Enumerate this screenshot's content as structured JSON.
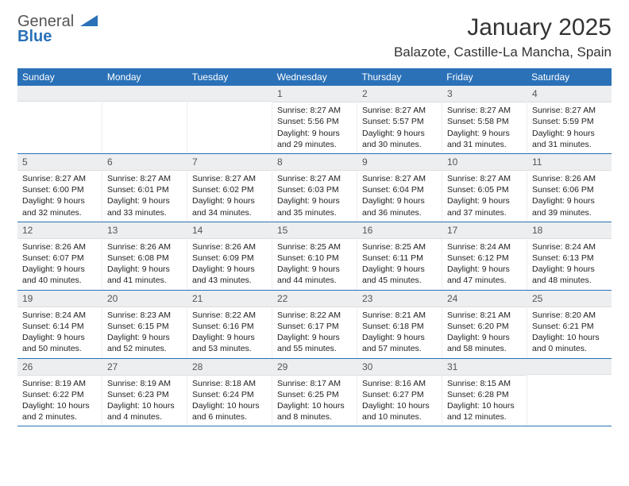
{
  "logo": {
    "line1": "General",
    "line2": "Blue",
    "tri_color": "#2a71b8"
  },
  "title": "January 2025",
  "location": "Balazote, Castille-La Mancha, Spain",
  "colors": {
    "header_bg": "#2a71b8",
    "header_text": "#ffffff",
    "daynum_bg": "#eceef0",
    "body_text": "#222222",
    "border": "#2a71b8"
  },
  "day_headers": [
    "Sunday",
    "Monday",
    "Tuesday",
    "Wednesday",
    "Thursday",
    "Friday",
    "Saturday"
  ],
  "weeks": [
    [
      null,
      null,
      null,
      {
        "n": "1",
        "sr": "8:27 AM",
        "ss": "5:56 PM",
        "dl": "9 hours and 29 minutes."
      },
      {
        "n": "2",
        "sr": "8:27 AM",
        "ss": "5:57 PM",
        "dl": "9 hours and 30 minutes."
      },
      {
        "n": "3",
        "sr": "8:27 AM",
        "ss": "5:58 PM",
        "dl": "9 hours and 31 minutes."
      },
      {
        "n": "4",
        "sr": "8:27 AM",
        "ss": "5:59 PM",
        "dl": "9 hours and 31 minutes."
      }
    ],
    [
      {
        "n": "5",
        "sr": "8:27 AM",
        "ss": "6:00 PM",
        "dl": "9 hours and 32 minutes."
      },
      {
        "n": "6",
        "sr": "8:27 AM",
        "ss": "6:01 PM",
        "dl": "9 hours and 33 minutes."
      },
      {
        "n": "7",
        "sr": "8:27 AM",
        "ss": "6:02 PM",
        "dl": "9 hours and 34 minutes."
      },
      {
        "n": "8",
        "sr": "8:27 AM",
        "ss": "6:03 PM",
        "dl": "9 hours and 35 minutes."
      },
      {
        "n": "9",
        "sr": "8:27 AM",
        "ss": "6:04 PM",
        "dl": "9 hours and 36 minutes."
      },
      {
        "n": "10",
        "sr": "8:27 AM",
        "ss": "6:05 PM",
        "dl": "9 hours and 37 minutes."
      },
      {
        "n": "11",
        "sr": "8:26 AM",
        "ss": "6:06 PM",
        "dl": "9 hours and 39 minutes."
      }
    ],
    [
      {
        "n": "12",
        "sr": "8:26 AM",
        "ss": "6:07 PM",
        "dl": "9 hours and 40 minutes."
      },
      {
        "n": "13",
        "sr": "8:26 AM",
        "ss": "6:08 PM",
        "dl": "9 hours and 41 minutes."
      },
      {
        "n": "14",
        "sr": "8:26 AM",
        "ss": "6:09 PM",
        "dl": "9 hours and 43 minutes."
      },
      {
        "n": "15",
        "sr": "8:25 AM",
        "ss": "6:10 PM",
        "dl": "9 hours and 44 minutes."
      },
      {
        "n": "16",
        "sr": "8:25 AM",
        "ss": "6:11 PM",
        "dl": "9 hours and 45 minutes."
      },
      {
        "n": "17",
        "sr": "8:24 AM",
        "ss": "6:12 PM",
        "dl": "9 hours and 47 minutes."
      },
      {
        "n": "18",
        "sr": "8:24 AM",
        "ss": "6:13 PM",
        "dl": "9 hours and 48 minutes."
      }
    ],
    [
      {
        "n": "19",
        "sr": "8:24 AM",
        "ss": "6:14 PM",
        "dl": "9 hours and 50 minutes."
      },
      {
        "n": "20",
        "sr": "8:23 AM",
        "ss": "6:15 PM",
        "dl": "9 hours and 52 minutes."
      },
      {
        "n": "21",
        "sr": "8:22 AM",
        "ss": "6:16 PM",
        "dl": "9 hours and 53 minutes."
      },
      {
        "n": "22",
        "sr": "8:22 AM",
        "ss": "6:17 PM",
        "dl": "9 hours and 55 minutes."
      },
      {
        "n": "23",
        "sr": "8:21 AM",
        "ss": "6:18 PM",
        "dl": "9 hours and 57 minutes."
      },
      {
        "n": "24",
        "sr": "8:21 AM",
        "ss": "6:20 PM",
        "dl": "9 hours and 58 minutes."
      },
      {
        "n": "25",
        "sr": "8:20 AM",
        "ss": "6:21 PM",
        "dl": "10 hours and 0 minutes."
      }
    ],
    [
      {
        "n": "26",
        "sr": "8:19 AM",
        "ss": "6:22 PM",
        "dl": "10 hours and 2 minutes."
      },
      {
        "n": "27",
        "sr": "8:19 AM",
        "ss": "6:23 PM",
        "dl": "10 hours and 4 minutes."
      },
      {
        "n": "28",
        "sr": "8:18 AM",
        "ss": "6:24 PM",
        "dl": "10 hours and 6 minutes."
      },
      {
        "n": "29",
        "sr": "8:17 AM",
        "ss": "6:25 PM",
        "dl": "10 hours and 8 minutes."
      },
      {
        "n": "30",
        "sr": "8:16 AM",
        "ss": "6:27 PM",
        "dl": "10 hours and 10 minutes."
      },
      {
        "n": "31",
        "sr": "8:15 AM",
        "ss": "6:28 PM",
        "dl": "10 hours and 12 minutes."
      },
      null
    ]
  ],
  "labels": {
    "sunrise": "Sunrise:",
    "sunset": "Sunset:",
    "daylight": "Daylight:"
  }
}
